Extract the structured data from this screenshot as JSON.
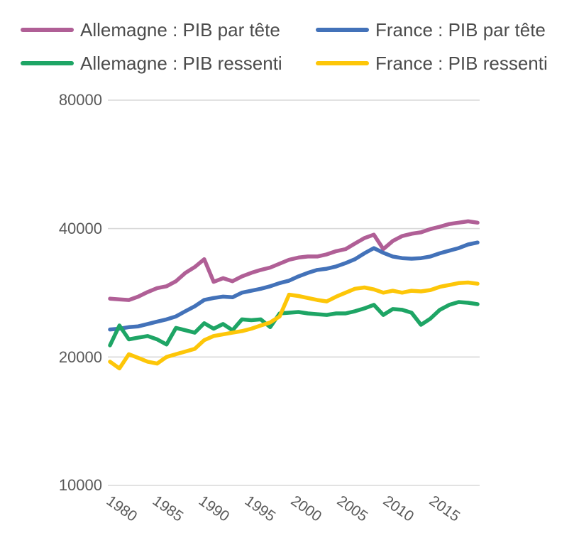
{
  "legend": {
    "items": [
      {
        "label": "Allemagne : PIB par tête",
        "color": "#b05f96"
      },
      {
        "label": "France : PIB par tête",
        "color": "#4372b9"
      },
      {
        "label": "Allemagne : PIB ressenti",
        "color": "#1ea565"
      },
      {
        "label": "France : PIB ressenti",
        "color": "#fdc608"
      }
    ]
  },
  "chart_data": {
    "type": "line",
    "title": "",
    "xlabel": "",
    "ylabel": "",
    "y_scale": "log2",
    "ylim": [
      10000,
      80000
    ],
    "grid": "horizontal",
    "grid_color": "#d9d9d9",
    "legend_position": "top",
    "y_ticks": [
      80000,
      40000,
      20000,
      10000
    ],
    "y_tick_labels": [
      "80000",
      "40000",
      "20000",
      "10000"
    ],
    "x_ticks": [
      1980,
      1985,
      1990,
      1995,
      2000,
      2005,
      2010,
      2015
    ],
    "x_tick_labels": [
      "1980",
      "1985",
      "1990",
      "1995",
      "2000",
      "2005",
      "2010",
      "2015"
    ],
    "x": [
      1980,
      1981,
      1982,
      1983,
      1984,
      1985,
      1986,
      1987,
      1988,
      1989,
      1990,
      1991,
      1992,
      1993,
      1994,
      1995,
      1996,
      1997,
      1998,
      1999,
      2000,
      2001,
      2002,
      2003,
      2004,
      2005,
      2006,
      2007,
      2008,
      2009,
      2010,
      2011,
      2012,
      2013,
      2014,
      2015,
      2016,
      2017,
      2018,
      2019
    ],
    "series": [
      {
        "name": "Allemagne : PIB par tête",
        "color": "#b05f96",
        "values": [
          27400,
          27300,
          27200,
          27700,
          28400,
          29000,
          29300,
          30100,
          31500,
          32500,
          33900,
          30000,
          30600,
          30100,
          30900,
          31500,
          32000,
          32400,
          33100,
          33800,
          34200,
          34400,
          34400,
          34800,
          35400,
          35800,
          36900,
          38000,
          38700,
          35800,
          37400,
          38400,
          38900,
          39200,
          39900,
          40400,
          41000,
          41300,
          41600,
          41300
        ]
      },
      {
        "name": "France : PIB par tête",
        "color": "#4372b9",
        "values": [
          23200,
          23300,
          23500,
          23600,
          23900,
          24200,
          24500,
          24900,
          25600,
          26300,
          27200,
          27500,
          27700,
          27600,
          28300,
          28600,
          28900,
          29300,
          29800,
          30200,
          30900,
          31500,
          32000,
          32200,
          32600,
          33200,
          33900,
          35000,
          36000,
          35100,
          34400,
          34100,
          34000,
          34100,
          34400,
          35000,
          35500,
          36000,
          36700,
          37100
        ]
      },
      {
        "name": "Allemagne : PIB ressenti",
        "color": "#1ea565",
        "values": [
          21300,
          23700,
          22000,
          22200,
          22400,
          22000,
          21400,
          23400,
          23100,
          22800,
          24000,
          23300,
          23900,
          23100,
          24500,
          24400,
          24500,
          23500,
          25300,
          25400,
          25500,
          25300,
          25200,
          25100,
          25300,
          25300,
          25600,
          26000,
          26500,
          25100,
          25900,
          25800,
          25400,
          23800,
          24600,
          25800,
          26500,
          26900,
          26800,
          26600
        ]
      },
      {
        "name": "France : PIB ressenti",
        "color": "#fdc608",
        "values": [
          19500,
          18800,
          20300,
          19900,
          19500,
          19300,
          20000,
          20300,
          20600,
          20900,
          21900,
          22400,
          22600,
          22800,
          23000,
          23300,
          23700,
          24100,
          24900,
          28000,
          27800,
          27500,
          27200,
          27000,
          27700,
          28300,
          28900,
          29100,
          28800,
          28300,
          28600,
          28300,
          28600,
          28500,
          28700,
          29200,
          29500,
          29800,
          29900,
          29700
        ]
      }
    ]
  }
}
